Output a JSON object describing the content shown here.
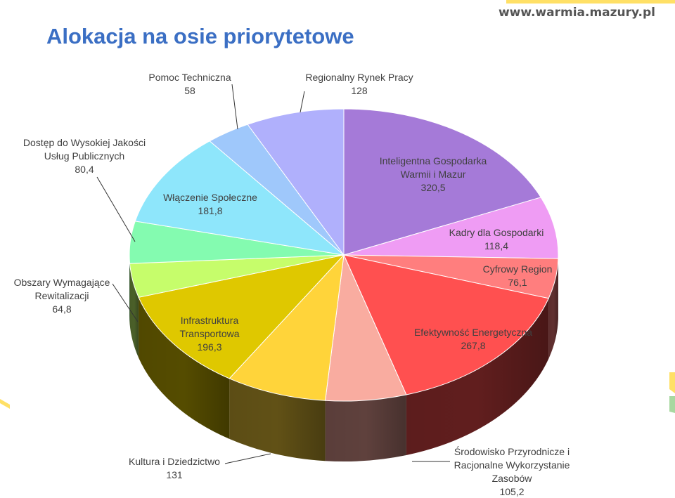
{
  "header": {
    "title": "Alokacja na osie priorytetowe",
    "site": "www.warmia.mazury.pl"
  },
  "chart_data": {
    "type": "pie",
    "title": "Alokacja na osie priorytetowe",
    "slices": [
      {
        "label_lines": [
          "Inteligentna Gospodarka",
          "Warmii i Mazur"
        ],
        "value_text": "320,5",
        "value": 320.5,
        "color": "#a57ad8"
      },
      {
        "label_lines": [
          "Kadry dla Gospodarki"
        ],
        "value_text": "118,4",
        "value": 118.4,
        "color": "#ef9cf4"
      },
      {
        "label_lines": [
          "Cyfrowy Region"
        ],
        "value_text": "76,1",
        "value": 76.1,
        "color": "#ff7e7e"
      },
      {
        "label_lines": [
          "Efektywność Energetyczna"
        ],
        "value_text": "267,8",
        "value": 267.8,
        "color": "#ff5050"
      },
      {
        "label_lines": [
          "Środowisko Przyrodnicze i",
          "Racjonalne Wykorzystanie",
          "Zasobów"
        ],
        "value_text": "105,2",
        "value": 105.2,
        "color": "#f9aca0"
      },
      {
        "label_lines": [
          "Kultura i Dziedzictwo"
        ],
        "value_text": "131",
        "value": 131,
        "color": "#ffd43a"
      },
      {
        "label_lines": [
          "Infrastruktura",
          "Transportowa"
        ],
        "value_text": "196,3",
        "value": 196.3,
        "color": "#dfc800"
      },
      {
        "label_lines": [
          "Obszary Wymagające",
          "Rewitalizacji"
        ],
        "value_text": "64,8",
        "value": 64.8,
        "color": "#c6fd6b"
      },
      {
        "label_lines": [
          "Dostęp do Wysokiej Jakości",
          "Usług Publicznych"
        ],
        "value_text": "80,4",
        "value": 80.4,
        "color": "#84fbb0"
      },
      {
        "label_lines": [
          "Włączenie Społeczne"
        ],
        "value_text": "181,8",
        "value": 181.8,
        "color": "#8ee6fb"
      },
      {
        "label_lines": [
          "Pomoc Techniczna"
        ],
        "value_text": "58",
        "value": 58,
        "color": "#9fc8fb"
      },
      {
        "label_lines": [
          "Regionalny Rynek Pracy"
        ],
        "value_text": "128",
        "value": 128,
        "color": "#b0b0fc"
      }
    ]
  }
}
